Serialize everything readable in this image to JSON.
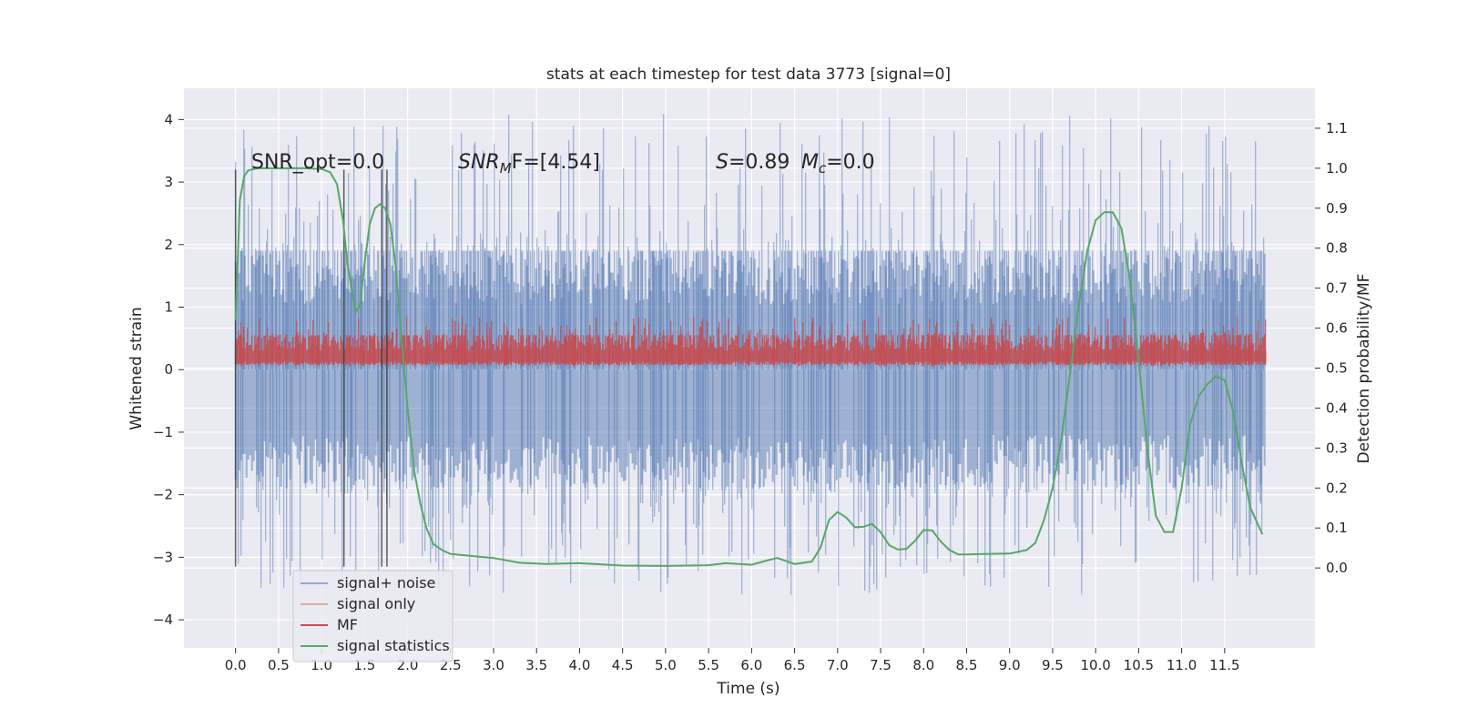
{
  "chart_data": {
    "type": "line",
    "title": "stats at each timestep for test data 3773 [signal=0]",
    "xlabel": "Time (s)",
    "ylabel_left": "Whitened strain",
    "ylabel_right": "Detection probability/MF",
    "xlim": [
      -0.6,
      12.55
    ],
    "ylim_left": [
      -4.45,
      4.5
    ],
    "ylim_right": [
      -0.2,
      1.2
    ],
    "x_ticks": [
      0.0,
      0.5,
      1.0,
      1.5,
      2.0,
      2.5,
      3.0,
      3.5,
      4.0,
      4.5,
      5.0,
      5.5,
      6.0,
      6.5,
      7.0,
      7.5,
      8.0,
      8.5,
      9.0,
      9.5,
      10.0,
      10.5,
      11.0,
      11.5
    ],
    "x_tick_labels": [
      "0.0",
      "0.5",
      "1.0",
      "1.5",
      "2.0",
      "2.5",
      "3.0",
      "3.5",
      "4.0",
      "4.5",
      "5.0",
      "5.5",
      "6.0",
      "6.5",
      "7.0",
      "7.5",
      "8.0",
      "8.5",
      "9.0",
      "9.5",
      "10.0",
      "10.5",
      "11.0",
      "11.5"
    ],
    "y_left_ticks": [
      -4,
      -3,
      -2,
      -1,
      0,
      1,
      2,
      3,
      4
    ],
    "y_left_tick_labels": [
      "−4",
      "−3",
      "−2",
      "−1",
      "0",
      "1",
      "2",
      "3",
      "4"
    ],
    "y_right_ticks": [
      0.0,
      0.1,
      0.2,
      0.3,
      0.4,
      0.5,
      0.6,
      0.7,
      0.8,
      0.9,
      1.0,
      1.1
    ],
    "y_right_tick_labels": [
      "0.0",
      "0.1",
      "0.2",
      "0.3",
      "0.4",
      "0.5",
      "0.6",
      "0.7",
      "0.8",
      "0.9",
      "1.0",
      "1.1"
    ],
    "grid": true,
    "legend_position": "lower-left",
    "annotations": {
      "snr_opt": "SNR_opt=0.0",
      "snr_mf_base": "SNR",
      "snr_mf_sub": "M",
      "snr_mf_rest": "F=[4.54]",
      "s_label": "S",
      "s_value": "=0.89",
      "mc_base": "M",
      "mc_sub": "c",
      "mc_value": "=0.0"
    },
    "vertical_markers_x": [
      0.0,
      1.26,
      1.7,
      1.76
    ],
    "vertical_markers_range": [
      -3.15,
      3.2
    ],
    "series": [
      {
        "name": "signal+ noise",
        "color": "#4c72b0",
        "axis": "left",
        "kind": "noise-band",
        "x_range": [
          0.0,
          11.98
        ],
        "core_band": [
          -1.9,
          1.9
        ],
        "peak_range": [
          -3.6,
          4.1
        ]
      },
      {
        "name": "signal only",
        "color": "#dd8452",
        "axis": "left",
        "kind": "flat",
        "values": []
      },
      {
        "name": "MF",
        "color": "#c44e52",
        "axis": "left",
        "kind": "noise-band",
        "x_range": [
          0.0,
          11.98
        ],
        "core_band": [
          0.08,
          0.55
        ],
        "peak_range": [
          0.05,
          0.85
        ]
      },
      {
        "name": "signal statistics",
        "color": "#55a868",
        "axis": "right",
        "kind": "line",
        "x": [
          0.0,
          0.05,
          0.1,
          0.15,
          0.25,
          0.5,
          0.8,
          1.0,
          1.1,
          1.18,
          1.25,
          1.3,
          1.35,
          1.4,
          1.45,
          1.5,
          1.56,
          1.62,
          1.68,
          1.74,
          1.8,
          1.86,
          1.92,
          2.0,
          2.08,
          2.15,
          2.22,
          2.3,
          2.4,
          2.5,
          2.6,
          2.75,
          3.0,
          3.3,
          3.6,
          4.0,
          4.5,
          5.0,
          5.5,
          5.7,
          6.0,
          6.2,
          6.3,
          6.5,
          6.7,
          6.8,
          6.9,
          7.0,
          7.1,
          7.2,
          7.3,
          7.4,
          7.5,
          7.6,
          7.7,
          7.8,
          7.9,
          8.0,
          8.1,
          8.2,
          8.3,
          8.4,
          8.5,
          8.7,
          9.0,
          9.2,
          9.3,
          9.4,
          9.5,
          9.6,
          9.7,
          9.8,
          9.9,
          10.0,
          10.1,
          10.2,
          10.3,
          10.4,
          10.5,
          10.6,
          10.7,
          10.8,
          10.9,
          11.0,
          11.1,
          11.2,
          11.3,
          11.4,
          11.5,
          11.6,
          11.7,
          11.8,
          11.94
        ],
        "values": [
          0.62,
          0.92,
          0.98,
          0.995,
          1.0,
          1.0,
          1.0,
          0.998,
          0.99,
          0.96,
          0.87,
          0.76,
          0.7,
          0.64,
          0.66,
          0.76,
          0.86,
          0.9,
          0.91,
          0.9,
          0.86,
          0.76,
          0.6,
          0.4,
          0.24,
          0.16,
          0.1,
          0.06,
          0.045,
          0.035,
          0.033,
          0.03,
          0.025,
          0.013,
          0.01,
          0.012,
          0.006,
          0.005,
          0.007,
          0.012,
          0.008,
          0.02,
          0.025,
          0.01,
          0.016,
          0.05,
          0.12,
          0.14,
          0.126,
          0.102,
          0.103,
          0.11,
          0.09,
          0.057,
          0.046,
          0.048,
          0.068,
          0.095,
          0.094,
          0.066,
          0.045,
          0.034,
          0.034,
          0.035,
          0.036,
          0.045,
          0.063,
          0.12,
          0.2,
          0.32,
          0.48,
          0.65,
          0.79,
          0.87,
          0.89,
          0.89,
          0.85,
          0.72,
          0.52,
          0.3,
          0.13,
          0.09,
          0.09,
          0.2,
          0.36,
          0.43,
          0.46,
          0.48,
          0.47,
          0.39,
          0.26,
          0.15,
          0.084
        ]
      }
    ]
  }
}
